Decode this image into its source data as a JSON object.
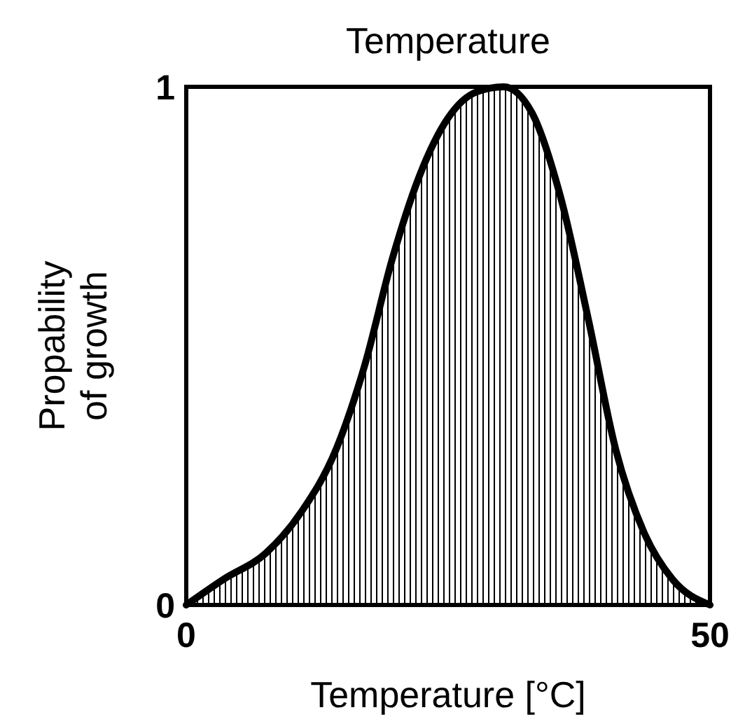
{
  "chart_data": {
    "type": "area",
    "title": "Temperature",
    "xlabel": "Temperature [°C]",
    "ylabel": "Propability of growth",
    "x": [
      0,
      3.6,
      7.6,
      11,
      14.3,
      17,
      19.7,
      22.3,
      25,
      27.7,
      30.3,
      33,
      35.7,
      38.4,
      41,
      43.7,
      46.4,
      50
    ],
    "series": [
      {
        "color": "#000000",
        "values": [
          0,
          0.05,
          0.1,
          0.18,
          0.3,
          0.46,
          0.67,
          0.83,
          0.94,
          0.99,
          1,
          0.95,
          0.79,
          0.55,
          0.3,
          0.14,
          0.05,
          0
        ]
      }
    ],
    "xlim": [
      0,
      50
    ],
    "xticks": [
      0,
      50
    ],
    "ylim": [
      0,
      1
    ],
    "yticks": [
      0,
      1
    ]
  }
}
